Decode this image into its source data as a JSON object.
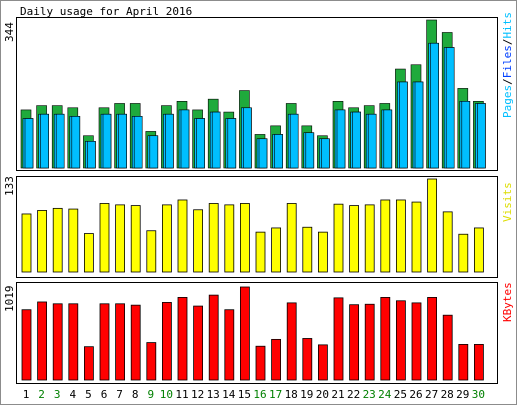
{
  "title": "Daily usage for April 2016",
  "colors": {
    "background": "#FFFFFF",
    "border": "#8C8C8C",
    "pages": "#00805C",
    "files": "#0040FF",
    "hits": "#00C0FF",
    "hits_bar": "#00BFFF",
    "pages_bar": "#1FAA3C",
    "visits": "#FFFF00",
    "kbytes": "#FF0000",
    "weekday_label": "#000000",
    "weekend_label": "#008000"
  },
  "legends": {
    "top_pages": "Pages",
    "top_files": "Files",
    "top_hits": "Hits",
    "middle": "Visits",
    "bottom": "KBytes"
  },
  "axis_max_labels": {
    "top": "344",
    "middle": "133",
    "bottom": "1019"
  },
  "chart_data": [
    {
      "type": "bar",
      "panel": "hits-files-pages",
      "title": "Daily usage for April 2016",
      "categories": [
        "1",
        "2",
        "3",
        "4",
        "5",
        "6",
        "7",
        "8",
        "9",
        "10",
        "11",
        "12",
        "13",
        "14",
        "15",
        "16",
        "17",
        "18",
        "19",
        "20",
        "21",
        "22",
        "23",
        "24",
        "25",
        "26",
        "27",
        "28",
        "29",
        "30"
      ],
      "weekend_days": [
        "2",
        "3",
        "9",
        "10",
        "16",
        "17",
        "23",
        "24",
        "30"
      ],
      "ylim": [
        0,
        344
      ],
      "series": [
        {
          "name": "Pages",
          "values": [
            135,
            145,
            145,
            140,
            75,
            140,
            150,
            150,
            85,
            145,
            155,
            135,
            160,
            130,
            180,
            78,
            98,
            150,
            98,
            75,
            155,
            140,
            145,
            150,
            230,
            240,
            344,
            315,
            185,
            155
          ]
        },
        {
          "name": "Files",
          "values": [
            115,
            125,
            125,
            120,
            62,
            125,
            125,
            120,
            75,
            125,
            135,
            115,
            130,
            115,
            140,
            68,
            78,
            125,
            82,
            68,
            135,
            130,
            125,
            135,
            200,
            200,
            290,
            280,
            155,
            150
          ]
        },
        {
          "name": "Hits",
          "values": [
            115,
            125,
            125,
            120,
            62,
            125,
            125,
            120,
            75,
            125,
            135,
            115,
            130,
            115,
            140,
            68,
            78,
            125,
            82,
            68,
            135,
            130,
            125,
            135,
            200,
            200,
            290,
            280,
            155,
            150
          ]
        }
      ]
    },
    {
      "type": "bar",
      "panel": "visits",
      "categories": [
        "1",
        "2",
        "3",
        "4",
        "5",
        "6",
        "7",
        "8",
        "9",
        "10",
        "11",
        "12",
        "13",
        "14",
        "15",
        "16",
        "17",
        "18",
        "19",
        "20",
        "21",
        "22",
        "23",
        "24",
        "25",
        "26",
        "27",
        "28",
        "29",
        "30"
      ],
      "ylim": [
        0,
        133
      ],
      "series": [
        {
          "name": "Visits",
          "values": [
            83,
            88,
            91,
            90,
            55,
            98,
            96,
            95,
            59,
            96,
            103,
            89,
            98,
            96,
            98,
            57,
            63,
            98,
            64,
            57,
            97,
            95,
            96,
            103,
            103,
            100,
            133,
            86,
            54,
            63
          ]
        }
      ]
    },
    {
      "type": "bar",
      "panel": "kbytes",
      "categories": [
        "1",
        "2",
        "3",
        "4",
        "5",
        "6",
        "7",
        "8",
        "9",
        "10",
        "11",
        "12",
        "13",
        "14",
        "15",
        "16",
        "17",
        "18",
        "19",
        "20",
        "21",
        "22",
        "23",
        "24",
        "25",
        "26",
        "27",
        "28",
        "29",
        "30"
      ],
      "ylim": [
        0,
        1019
      ],
      "series": [
        {
          "name": "KBytes",
          "values": [
            770,
            855,
            835,
            835,
            365,
            835,
            835,
            820,
            410,
            850,
            905,
            810,
            930,
            770,
            1019,
            370,
            445,
            845,
            455,
            385,
            900,
            825,
            830,
            905,
            868,
            845,
            905,
            710,
            390,
            390
          ]
        }
      ]
    }
  ]
}
